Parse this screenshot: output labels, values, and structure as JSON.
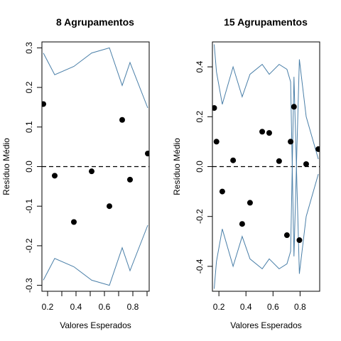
{
  "colors": {
    "band": "#4a7fa8",
    "points": "#000000",
    "reference": "#000000"
  },
  "chart_data": [
    {
      "type": "scatter",
      "title": "8 Agrupamentos",
      "xlabel": "Valores Esperados",
      "ylabel": "Resíduo Médio",
      "xlim": [
        0.16,
        0.915
      ],
      "ylim": [
        -0.315,
        0.315
      ],
      "xticks": [
        0.2,
        0.4,
        0.6,
        0.8
      ],
      "xtick_labels": [
        "0.2",
        "0.4",
        "0.6",
        "0.8"
      ],
      "minor_xticks": [
        0.3,
        0.5,
        0.7,
        0.9
      ],
      "yticks": [
        -0.3,
        -0.2,
        -0.1,
        0.0,
        0.1,
        0.2,
        0.3
      ],
      "ytick_labels": [
        "-0.3",
        "-0.2",
        "-0.1",
        "0.0",
        "0.1",
        "0.2",
        "0.3"
      ],
      "reference_line_y": 0,
      "points": {
        "x": [
          0.17,
          0.25,
          0.385,
          0.51,
          0.635,
          0.725,
          0.78,
          0.905
        ],
        "y": [
          0.158,
          -0.023,
          -0.14,
          -0.012,
          -0.1,
          0.118,
          -0.033,
          0.033
        ]
      },
      "band_upper": {
        "x": [
          0.17,
          0.25,
          0.385,
          0.51,
          0.635,
          0.725,
          0.78,
          0.905
        ],
        "y": [
          0.287,
          0.232,
          0.253,
          0.287,
          0.3,
          0.205,
          0.263,
          0.148
        ]
      },
      "band_lower": {
        "x": [
          0.17,
          0.25,
          0.385,
          0.51,
          0.635,
          0.725,
          0.78,
          0.905
        ],
        "y": [
          -0.287,
          -0.232,
          -0.253,
          -0.287,
          -0.3,
          -0.205,
          -0.263,
          -0.148
        ]
      }
    },
    {
      "type": "scatter",
      "title": "15 Agrupamentos",
      "xlabel": "Valores Esperados",
      "ylabel": "Resíduo Médio",
      "xlim": [
        0.152,
        0.945
      ],
      "ylim": [
        -0.5,
        0.5
      ],
      "xticks": [
        0.2,
        0.4,
        0.6,
        0.8
      ],
      "xtick_labels": [
        "0.2",
        "0.4",
        "0.6",
        "0.8"
      ],
      "minor_xticks": [],
      "yticks": [
        -0.4,
        -0.2,
        0.0,
        0.2,
        0.4
      ],
      "ytick_labels": [
        "-0.4",
        "-0.2",
        "0.0",
        "0.2",
        "0.4"
      ],
      "reference_line_y": 0,
      "points": {
        "x": [
          0.165,
          0.182,
          0.225,
          0.305,
          0.372,
          0.43,
          0.52,
          0.572,
          0.645,
          0.703,
          0.73,
          0.755,
          0.795,
          0.845,
          0.935
        ],
        "y": [
          0.235,
          0.1,
          -0.1,
          0.025,
          -0.23,
          -0.145,
          0.14,
          0.135,
          0.022,
          -0.275,
          0.1,
          0.24,
          -0.295,
          0.01,
          0.07
        ]
      },
      "band_upper": {
        "x": [
          0.165,
          0.182,
          0.225,
          0.305,
          0.372,
          0.43,
          0.52,
          0.572,
          0.645,
          0.703,
          0.73,
          0.755,
          0.795,
          0.845,
          0.935
        ],
        "y": [
          0.49,
          0.38,
          0.25,
          0.4,
          0.28,
          0.37,
          0.41,
          0.37,
          0.41,
          0.39,
          0.34,
          -0.36,
          0.43,
          0.2,
          0.03
        ]
      },
      "band_lower": {
        "x": [
          0.165,
          0.182,
          0.225,
          0.305,
          0.372,
          0.43,
          0.52,
          0.572,
          0.645,
          0.703,
          0.73,
          0.755,
          0.795,
          0.845,
          0.935
        ],
        "y": [
          -0.49,
          -0.38,
          -0.25,
          -0.4,
          -0.28,
          -0.37,
          -0.41,
          -0.37,
          -0.41,
          -0.39,
          -0.34,
          0.36,
          -0.43,
          -0.2,
          -0.03
        ]
      }
    }
  ]
}
